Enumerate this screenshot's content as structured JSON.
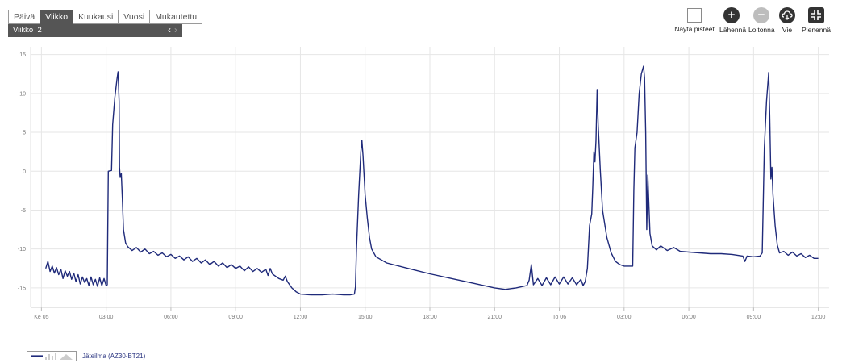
{
  "tabs": [
    {
      "label": "Päivä",
      "active": false
    },
    {
      "label": "Viikko",
      "active": true
    },
    {
      "label": "Kuukausi",
      "active": false
    },
    {
      "label": "Vuosi",
      "active": false
    },
    {
      "label": "Mukautettu",
      "active": false
    }
  ],
  "week": {
    "label": "Viikko",
    "number": "2"
  },
  "toolbar": {
    "show_points": "Näytä pisteet",
    "zoom_in": "Lähennä",
    "zoom_out": "Loitonna",
    "export": "Vie",
    "minimize": "Pienennä"
  },
  "legend": {
    "label": "Jäteilma (AZ30-BT21)"
  },
  "colors": {
    "series": "#1f2a7a",
    "grid": "#e6e6e6",
    "active_tab": "#555555"
  },
  "icons": {
    "zoom_in": "plus-circle-icon",
    "zoom_out": "minus-circle-icon",
    "export": "cloud-download-icon",
    "minimize": "collapse-icon"
  },
  "chart_data": {
    "type": "line",
    "title": "",
    "xlabel": "",
    "ylabel": "",
    "grid": true,
    "legend_position": "bottom-left",
    "ylim": [
      -17.5,
      16
    ],
    "yticks": [
      15,
      10,
      5,
      0,
      -5,
      -10,
      -15
    ],
    "xlim": [
      -0.5,
      36.5
    ],
    "xticks": [
      {
        "x": 0,
        "label": "Ke 05"
      },
      {
        "x": 3,
        "label": "03:00"
      },
      {
        "x": 6,
        "label": "06:00"
      },
      {
        "x": 9,
        "label": "09:00"
      },
      {
        "x": 12,
        "label": "12:00"
      },
      {
        "x": 15,
        "label": "15:00"
      },
      {
        "x": 18,
        "label": "18:00"
      },
      {
        "x": 21,
        "label": "21:00"
      },
      {
        "x": 24,
        "label": "To 06"
      },
      {
        "x": 27,
        "label": "03:00"
      },
      {
        "x": 30,
        "label": "06:00"
      },
      {
        "x": 33,
        "label": "09:00"
      },
      {
        "x": 36,
        "label": "12:00"
      }
    ],
    "series": [
      {
        "name": "Jäteilma (AZ30-BT21)",
        "points": [
          [
            0.2,
            -12.5
          ],
          [
            0.3,
            -11.6
          ],
          [
            0.4,
            -12.9
          ],
          [
            0.5,
            -12.2
          ],
          [
            0.6,
            -13.1
          ],
          [
            0.7,
            -12.4
          ],
          [
            0.8,
            -13.3
          ],
          [
            0.9,
            -12.6
          ],
          [
            1.0,
            -13.8
          ],
          [
            1.1,
            -12.8
          ],
          [
            1.2,
            -13.5
          ],
          [
            1.3,
            -12.9
          ],
          [
            1.4,
            -13.9
          ],
          [
            1.5,
            -13.1
          ],
          [
            1.6,
            -14.2
          ],
          [
            1.7,
            -13.3
          ],
          [
            1.8,
            -14.5
          ],
          [
            1.9,
            -13.6
          ],
          [
            2.0,
            -14.3
          ],
          [
            2.1,
            -13.8
          ],
          [
            2.2,
            -14.7
          ],
          [
            2.3,
            -13.6
          ],
          [
            2.4,
            -14.6
          ],
          [
            2.5,
            -13.9
          ],
          [
            2.6,
            -14.8
          ],
          [
            2.7,
            -13.7
          ],
          [
            2.8,
            -14.7
          ],
          [
            2.9,
            -13.8
          ],
          [
            3.0,
            -14.7
          ],
          [
            3.05,
            -14.6
          ],
          [
            3.1,
            0
          ],
          [
            3.25,
            0.1
          ],
          [
            3.3,
            6.0
          ],
          [
            3.4,
            9.5
          ],
          [
            3.5,
            11.8
          ],
          [
            3.55,
            12.8
          ],
          [
            3.6,
            9.0
          ],
          [
            3.62,
            0.5
          ],
          [
            3.65,
            -0.8
          ],
          [
            3.7,
            -0.3
          ],
          [
            3.75,
            -3.5
          ],
          [
            3.8,
            -7.5
          ],
          [
            3.9,
            -9.2
          ],
          [
            4.0,
            -9.7
          ],
          [
            4.2,
            -10.2
          ],
          [
            4.4,
            -9.8
          ],
          [
            4.6,
            -10.4
          ],
          [
            4.8,
            -10.0
          ],
          [
            5.0,
            -10.6
          ],
          [
            5.2,
            -10.3
          ],
          [
            5.4,
            -10.8
          ],
          [
            5.6,
            -10.5
          ],
          [
            5.8,
            -11.0
          ],
          [
            6.0,
            -10.7
          ],
          [
            6.2,
            -11.2
          ],
          [
            6.4,
            -10.9
          ],
          [
            6.6,
            -11.4
          ],
          [
            6.8,
            -11.0
          ],
          [
            7.0,
            -11.6
          ],
          [
            7.2,
            -11.2
          ],
          [
            7.4,
            -11.8
          ],
          [
            7.6,
            -11.4
          ],
          [
            7.8,
            -12.0
          ],
          [
            8.0,
            -11.6
          ],
          [
            8.2,
            -12.2
          ],
          [
            8.4,
            -11.8
          ],
          [
            8.6,
            -12.4
          ],
          [
            8.8,
            -12.0
          ],
          [
            9.0,
            -12.5
          ],
          [
            9.2,
            -12.2
          ],
          [
            9.4,
            -12.8
          ],
          [
            9.6,
            -12.3
          ],
          [
            9.8,
            -12.9
          ],
          [
            10.0,
            -12.5
          ],
          [
            10.2,
            -13.0
          ],
          [
            10.4,
            -12.6
          ],
          [
            10.5,
            -13.4
          ],
          [
            10.6,
            -12.5
          ],
          [
            10.7,
            -13.2
          ],
          [
            10.8,
            -13.4
          ],
          [
            11.0,
            -13.8
          ],
          [
            11.2,
            -14.0
          ],
          [
            11.3,
            -13.5
          ],
          [
            11.4,
            -14.2
          ],
          [
            11.6,
            -15.0
          ],
          [
            11.8,
            -15.5
          ],
          [
            12.0,
            -15.8
          ],
          [
            12.5,
            -15.9
          ],
          [
            13.0,
            -15.9
          ],
          [
            13.5,
            -15.8
          ],
          [
            14.0,
            -15.9
          ],
          [
            14.3,
            -15.9
          ],
          [
            14.5,
            -15.8
          ],
          [
            14.55,
            -14.9
          ],
          [
            14.6,
            -10.0
          ],
          [
            14.7,
            -3.0
          ],
          [
            14.8,
            2.5
          ],
          [
            14.85,
            4.0
          ],
          [
            14.9,
            2.0
          ],
          [
            15.0,
            -3.0
          ],
          [
            15.1,
            -6.0
          ],
          [
            15.2,
            -8.5
          ],
          [
            15.3,
            -10.0
          ],
          [
            15.5,
            -11.0
          ],
          [
            16.0,
            -11.8
          ],
          [
            17.0,
            -12.5
          ],
          [
            18.0,
            -13.2
          ],
          [
            19.0,
            -13.8
          ],
          [
            20.0,
            -14.4
          ],
          [
            21.0,
            -15.0
          ],
          [
            21.5,
            -15.2
          ],
          [
            22.0,
            -15.0
          ],
          [
            22.5,
            -14.7
          ],
          [
            22.6,
            -14.0
          ],
          [
            22.7,
            -12.0
          ],
          [
            22.8,
            -14.6
          ],
          [
            23.0,
            -13.8
          ],
          [
            23.2,
            -14.7
          ],
          [
            23.4,
            -13.7
          ],
          [
            23.6,
            -14.6
          ],
          [
            23.8,
            -13.6
          ],
          [
            24.0,
            -14.5
          ],
          [
            24.2,
            -13.6
          ],
          [
            24.4,
            -14.5
          ],
          [
            24.6,
            -13.7
          ],
          [
            24.8,
            -14.6
          ],
          [
            25.0,
            -13.9
          ],
          [
            25.1,
            -14.7
          ],
          [
            25.2,
            -14.2
          ],
          [
            25.3,
            -12.5
          ],
          [
            25.4,
            -7.0
          ],
          [
            25.5,
            -5.5
          ],
          [
            25.55,
            -2.0
          ],
          [
            25.6,
            2.5
          ],
          [
            25.65,
            1.2
          ],
          [
            25.7,
            4.0
          ],
          [
            25.75,
            10.5
          ],
          [
            25.8,
            6.0
          ],
          [
            25.9,
            0.0
          ],
          [
            26.0,
            -5.0
          ],
          [
            26.2,
            -8.5
          ],
          [
            26.4,
            -10.5
          ],
          [
            26.6,
            -11.6
          ],
          [
            26.8,
            -12.0
          ],
          [
            27.0,
            -12.2
          ],
          [
            27.2,
            -12.2
          ],
          [
            27.4,
            -12.2
          ],
          [
            27.45,
            -2.5
          ],
          [
            27.5,
            3.0
          ],
          [
            27.6,
            5.0
          ],
          [
            27.7,
            10.0
          ],
          [
            27.8,
            12.5
          ],
          [
            27.9,
            13.5
          ],
          [
            27.95,
            12.0
          ],
          [
            28.0,
            5.0
          ],
          [
            28.05,
            -7.5
          ],
          [
            28.1,
            -0.5
          ],
          [
            28.2,
            -8.0
          ],
          [
            28.3,
            -9.6
          ],
          [
            28.5,
            -10.1
          ],
          [
            28.7,
            -9.6
          ],
          [
            29.0,
            -10.2
          ],
          [
            29.3,
            -9.8
          ],
          [
            29.6,
            -10.3
          ],
          [
            30.0,
            -10.4
          ],
          [
            30.5,
            -10.5
          ],
          [
            31.0,
            -10.6
          ],
          [
            31.5,
            -10.6
          ],
          [
            32.0,
            -10.7
          ],
          [
            32.5,
            -10.9
          ],
          [
            32.6,
            -11.6
          ],
          [
            32.7,
            -10.9
          ],
          [
            33.0,
            -11.0
          ],
          [
            33.3,
            -10.9
          ],
          [
            33.4,
            -10.5
          ],
          [
            33.5,
            3.0
          ],
          [
            33.6,
            9.0
          ],
          [
            33.7,
            12.7
          ],
          [
            33.75,
            7.0
          ],
          [
            33.8,
            -1.0
          ],
          [
            33.85,
            0.5
          ],
          [
            33.9,
            -3.0
          ],
          [
            34.0,
            -7.0
          ],
          [
            34.1,
            -9.5
          ],
          [
            34.2,
            -10.5
          ],
          [
            34.4,
            -10.3
          ],
          [
            34.6,
            -10.8
          ],
          [
            34.8,
            -10.4
          ],
          [
            35.0,
            -10.9
          ],
          [
            35.2,
            -10.6
          ],
          [
            35.4,
            -11.1
          ],
          [
            35.6,
            -10.8
          ],
          [
            35.8,
            -11.2
          ],
          [
            36.0,
            -11.2
          ]
        ]
      }
    ]
  }
}
